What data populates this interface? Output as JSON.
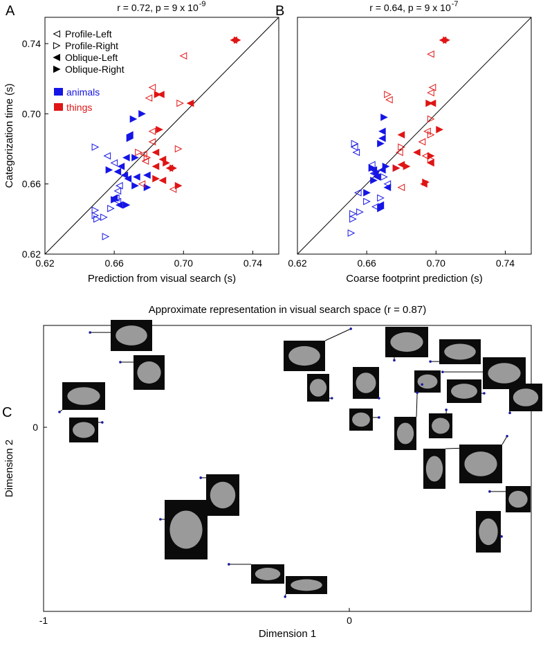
{
  "chart_data": [
    {
      "type": "scatter",
      "panel": "A",
      "title": "r = 0.72, p = 9 x 10",
      "title_exponent": "-9",
      "xlabel": "Prediction from visual search (s)",
      "ylabel": "Categorization time (s)",
      "xlim": [
        0.62,
        0.755
      ],
      "ylim": [
        0.62,
        0.755
      ],
      "xticks": [
        0.62,
        0.66,
        {
          "value": 0.7,
          "label": "0.70"
        },
        0.74
      ],
      "yticks": [
        0.62,
        0.66,
        {
          "value": 0.7,
          "label": "0.70"
        },
        0.74
      ],
      "identity_line": true,
      "markers": [
        "Profile-Left",
        "Profile-Right",
        "Oblique-Left",
        "Oblique-Right"
      ],
      "groups": [
        {
          "name": "animals",
          "color": "#1515e6",
          "series": [
            {
              "x": [
                0.656,
                0.66,
                0.663,
                0.662,
                0.661,
                0.662
              ],
              "y": [
                0.676,
                0.672,
                0.659,
                0.656,
                0.652,
                0.65
              ]
            },
            {
              "x": [
                0.649,
                0.649,
                0.649,
                0.65,
                0.654,
                0.655,
                0.658
              ],
              "y": [
                0.681,
                0.645,
                0.642,
                0.64,
                0.641,
                0.63,
                0.646
              ]
            },
            {
              "x": [
                0.669,
                0.667,
                0.664,
                0.662,
                0.666,
                0.668,
                0.679,
                0.673,
                0.66,
                0.663
              ],
              "y": [
                0.688,
                0.675,
                0.67,
                0.667,
                0.665,
                0.663,
                0.665,
                0.664,
                0.652,
                0.648
              ]
            },
            {
              "x": [
                0.671,
                0.669,
                0.676,
                0.672,
                0.657,
                0.672,
                0.679,
                0.66,
                0.667
              ],
              "y": [
                0.697,
                0.686,
                0.7,
                0.675,
                0.668,
                0.659,
                0.658,
                0.651,
                0.648
              ]
            }
          ]
        },
        {
          "name": "things",
          "color": "#e01515",
          "series": [
            {
              "x": [
                0.7,
                0.682,
                0.68,
                0.682,
                0.682,
                0.677,
                0.678,
                0.676,
                0.694
              ],
              "y": [
                0.733,
                0.715,
                0.709,
                0.69,
                0.684,
                0.677,
                0.673,
                0.66,
                0.657
              ]
            },
            {
              "x": [
                0.698,
                0.697,
                0.679,
                0.674
              ],
              "y": [
                0.706,
                0.68,
                0.675,
                0.678
              ]
            },
            {
              "x": [
                0.729,
                0.687,
                0.704,
                0.684,
                0.688,
                0.692,
                0.688,
                0.684
              ],
              "y": [
                0.742,
                0.711,
                0.706,
                0.678,
                0.674,
                0.669,
                0.662,
                0.67
              ]
            },
            {
              "x": [
                0.731,
                0.685,
                0.686,
                0.69,
                0.694,
                0.697,
                0.684
              ],
              "y": [
                0.742,
                0.711,
                0.691,
                0.672,
                0.669,
                0.659,
                0.663
              ]
            }
          ]
        }
      ]
    },
    {
      "type": "scatter",
      "panel": "B",
      "title": "r = 0.64, p = 9 x 10",
      "title_exponent": "-7",
      "xlabel": "Coarse footprint prediction (s)",
      "xlim": [
        0.62,
        0.755
      ],
      "ylim": [
        0.62,
        0.755
      ],
      "xticks": [
        0.62,
        0.66,
        {
          "value": 0.7,
          "label": "0.70"
        },
        0.74
      ],
      "identity_line": true,
      "groups": [
        {
          "color": "#1515e6",
          "series": [
            {
              "x": [
                0.653,
                0.654,
                0.663,
                0.664,
                0.672,
                0.665,
                0.655
              ],
              "y": [
                0.681,
                0.678,
                0.671,
                0.666,
                0.66,
                0.647,
                0.655
              ]
            },
            {
              "x": [
                0.653,
                0.652,
                0.652,
                0.651,
                0.656,
                0.66,
                0.67,
                0.668
              ],
              "y": [
                0.683,
                0.64,
                0.643,
                0.632,
                0.644,
                0.65,
                0.664,
                0.652
              ]
            },
            {
              "x": [
                0.669,
                0.669,
                0.664,
                0.665,
                0.666,
                0.669,
                0.672,
                0.668
              ],
              "y": [
                0.69,
                0.686,
                0.668,
                0.666,
                0.664,
                0.668,
                0.658,
                0.648
              ]
            },
            {
              "x": [
                0.67,
                0.668,
                0.663,
                0.664,
                0.671,
                0.677,
                0.66,
                0.668
              ],
              "y": [
                0.698,
                0.683,
                0.669,
                0.662,
                0.67,
                0.669,
                0.655,
                0.646
              ]
            }
          ]
        },
        {
          "color": "#e01515",
          "series": [
            {
              "x": [
                0.697,
                0.698,
                0.697,
                0.673,
                0.695,
                0.692,
                0.679,
                0.694,
                0.68
              ],
              "y": [
                0.734,
                0.715,
                0.712,
                0.708,
                0.69,
                0.684,
                0.678,
                0.676,
                0.658
              ]
            },
            {
              "x": [
                0.672,
                0.697,
                0.697,
                0.68,
                0.697
              ],
              "y": [
                0.711,
                0.697,
                0.688,
                0.681,
                0.674
              ]
            },
            {
              "x": [
                0.704,
                0.698,
                0.68,
                0.693,
                0.697,
                0.689,
                0.68
              ],
              "y": [
                0.742,
                0.706,
                0.688,
                0.66,
                0.672,
                0.678,
                0.671
              ]
            },
            {
              "x": [
                0.706,
                0.696,
                0.702,
                0.683,
                0.694,
                0.697,
                0.677
              ],
              "y": [
                0.742,
                0.706,
                0.691,
                0.67,
                0.661,
                0.676,
                0.669
              ]
            }
          ]
        }
      ]
    },
    {
      "type": "embedding",
      "panel": "C",
      "title": "Approximate representation in visual search space (r = 0.87)",
      "xlabel": "Dimension 1",
      "ylabel": "Dimension 2",
      "xlim": [
        -1,
        0.595
      ],
      "ylim": [
        -0.602,
        0.333
      ],
      "xticks": [
        -1,
        0
      ],
      "yticks": [
        0
      ],
      "color": "#1a1aa0",
      "x": [
        -0.848,
        -0.749,
        -0.948,
        -0.808,
        -0.486,
        -0.618,
        -0.394,
        -0.21,
        0.005,
        -0.057,
        0.097,
        0.147,
        0.265,
        0.238,
        0.441,
        0.305,
        0.525,
        0.097,
        0.222,
        0.317,
        0.376,
        0.516,
        0.459,
        0.498
      ],
      "y": [
        0.31,
        0.213,
        0.05,
        0.016,
        -0.165,
        -0.301,
        -0.448,
        -0.554,
        0.322,
        0.095,
        0.095,
        0.219,
        0.215,
        0.14,
        0.111,
        0.181,
        0.047,
        0.032,
        0.113,
        0.057,
        -0.068,
        -0.029,
        -0.21,
        -0.357
      ]
    }
  ]
}
